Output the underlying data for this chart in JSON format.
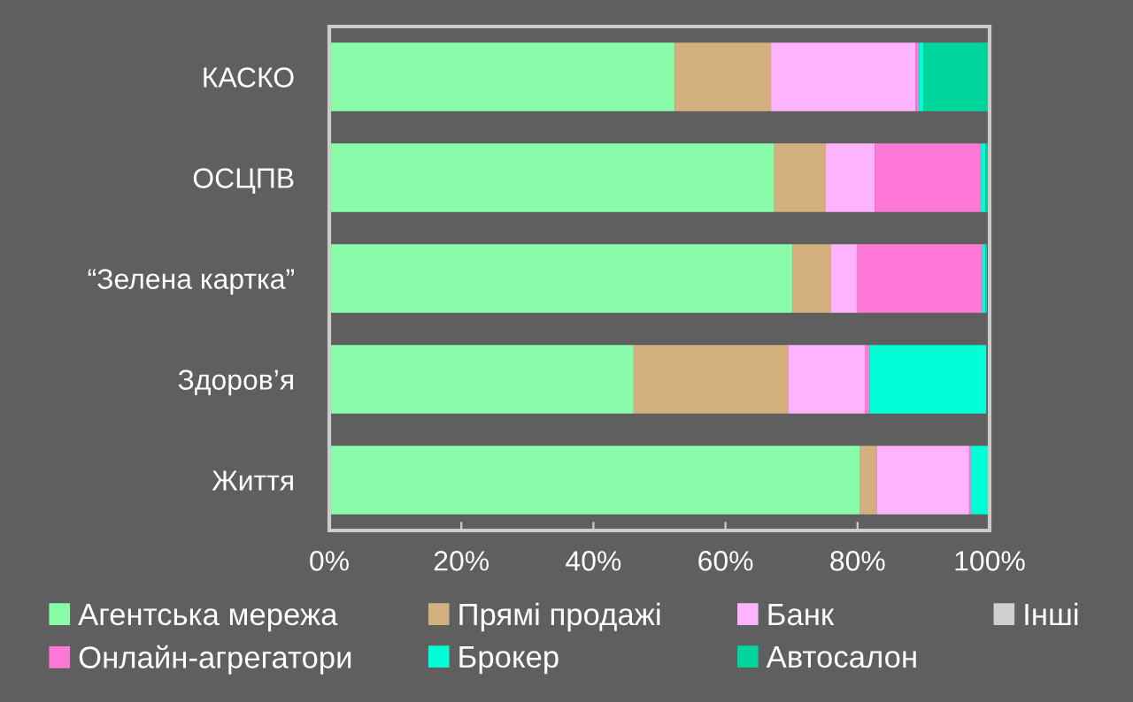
{
  "chart_data": {
    "type": "bar",
    "orientation": "horizontal",
    "stacked": true,
    "categories": [
      "КАСКО",
      "ОСЦПВ",
      "“Зелена картка”",
      "Здоров’я",
      "Життя"
    ],
    "series": [
      {
        "name": "Агентська мережа",
        "color": "#88fca8",
        "values": [
          52.3,
          67.4,
          70.2,
          46.1,
          80.4
        ]
      },
      {
        "name": "Прямі продажі",
        "color": "#d4b07f",
        "values": [
          14.6,
          7.8,
          5.8,
          23.4,
          2.5
        ]
      },
      {
        "name": "Банк",
        "color": "#ffb3fd",
        "values": [
          21.9,
          7.4,
          3.9,
          11.6,
          14.0
        ]
      },
      {
        "name": "Онлайн-агрегатори",
        "color": "#ff78d8",
        "values": [
          0.5,
          16.1,
          19.0,
          0.7,
          0.3
        ]
      },
      {
        "name": "Брокер",
        "color": "#00ffd6",
        "values": [
          0.7,
          0.7,
          0.5,
          17.7,
          2.8
        ]
      },
      {
        "name": "Автосалон",
        "color": "#00d69c",
        "values": [
          9.9,
          0.3,
          0.2,
          0,
          0
        ]
      },
      {
        "name": "Інші",
        "color": "#cfcfcf",
        "values": [
          0,
          null,
          null,
          null,
          0
        ]
      }
    ],
    "xlim": [
      0,
      100
    ],
    "xticks": [
      {
        "value": 0,
        "label": "0%"
      },
      {
        "value": 20,
        "label": "20%"
      },
      {
        "value": 40,
        "label": "40%"
      },
      {
        "value": 60,
        "label": "60%"
      },
      {
        "value": 80,
        "label": "80%"
      },
      {
        "value": 100,
        "label": "100%"
      }
    ],
    "grid": false,
    "legend": "bottom"
  }
}
